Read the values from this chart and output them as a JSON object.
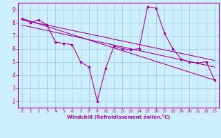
{
  "bg_color": "#cceeff",
  "line_color": "#aa00aa",
  "grid_color": "#99cccc",
  "xlabel": "Windchill (Refroidissement éolien,°C)",
  "xlim": [
    -0.5,
    23.5
  ],
  "ylim": [
    1.5,
    9.5
  ],
  "yticks": [
    2,
    3,
    4,
    5,
    6,
    7,
    8,
    9
  ],
  "xticks": [
    0,
    1,
    2,
    3,
    4,
    5,
    6,
    7,
    8,
    9,
    10,
    11,
    12,
    13,
    14,
    15,
    16,
    17,
    18,
    19,
    20,
    21,
    22,
    23
  ],
  "series_main": {
    "x": [
      0,
      1,
      2,
      3,
      4,
      5,
      6,
      7,
      8,
      9,
      10,
      11,
      12,
      13,
      14,
      15,
      16,
      17,
      18,
      19,
      20,
      21,
      22,
      23
    ],
    "y": [
      8.3,
      8.0,
      8.2,
      7.8,
      6.5,
      6.4,
      6.3,
      5.0,
      4.6,
      2.0,
      4.5,
      6.2,
      6.0,
      5.9,
      6.0,
      9.2,
      9.1,
      7.2,
      6.0,
      5.2,
      5.0,
      4.9,
      5.0,
      3.6
    ]
  },
  "trend_lines": [
    {
      "x": [
        0,
        23
      ],
      "y": [
        8.3,
        3.6
      ]
    },
    {
      "x": [
        0,
        23
      ],
      "y": [
        8.2,
        5.1
      ]
    },
    {
      "x": [
        0,
        23
      ],
      "y": [
        7.8,
        4.6
      ]
    }
  ]
}
